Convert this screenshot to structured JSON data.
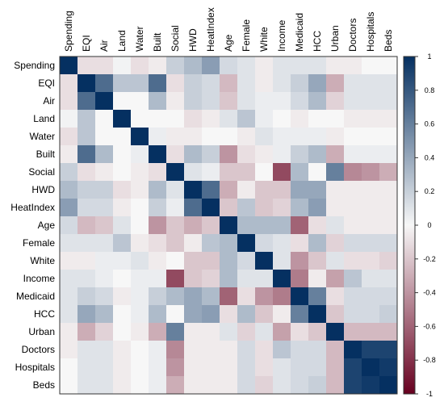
{
  "chart_data": {
    "type": "heatmap",
    "variables": [
      "Spending",
      "EQI",
      "Air",
      "Land",
      "Water",
      "Built",
      "Social",
      "HWD",
      "HeatIndex",
      "Age",
      "Female",
      "White",
      "Income",
      "Medicaid",
      "HCC",
      "Urban",
      "Doctors",
      "Hospitals",
      "Beds"
    ],
    "colorbar_ticks": [
      "1",
      "0.8",
      "0.6",
      "0.4",
      "0.2",
      "0",
      "-0.2",
      "-0.4",
      "-0.6",
      "-0.8",
      "-1"
    ],
    "color_range": [
      -1,
      1
    ],
    "colors": {
      "negative": "#67001f",
      "neutral": "#f7f7f7",
      "positive": "#053061"
    },
    "values": [
      [
        1.0,
        -0.1,
        -0.1,
        0.02,
        -0.1,
        -0.05,
        0.2,
        0.3,
        0.45,
        0.15,
        0.1,
        -0.05,
        0.1,
        0.1,
        0.1,
        -0.05,
        -0.05,
        0.0,
        0.0
      ],
      [
        -0.1,
        1.0,
        0.7,
        0.25,
        0.25,
        0.7,
        -0.1,
        0.2,
        0.15,
        -0.25,
        0.1,
        -0.05,
        0.1,
        0.2,
        0.4,
        -0.3,
        0.1,
        0.1,
        0.1
      ],
      [
        -0.1,
        0.7,
        1.0,
        0.0,
        0.0,
        0.3,
        -0.05,
        0.2,
        0.15,
        -0.2,
        0.1,
        0.05,
        0.05,
        0.15,
        0.3,
        -0.15,
        0.1,
        0.1,
        0.1
      ],
      [
        0.02,
        0.25,
        0.0,
        1.0,
        0.0,
        0.0,
        0.0,
        -0.1,
        -0.05,
        0.1,
        0.25,
        0.05,
        0.0,
        -0.05,
        0.0,
        0.0,
        -0.05,
        -0.05,
        -0.05
      ],
      [
        -0.1,
        0.25,
        0.0,
        0.0,
        1.0,
        0.05,
        -0.05,
        -0.05,
        0.0,
        0.0,
        -0.05,
        0.1,
        0.05,
        0.05,
        0.05,
        -0.05,
        0.0,
        0.0,
        0.0
      ],
      [
        -0.05,
        0.7,
        0.3,
        0.0,
        0.05,
        1.0,
        -0.1,
        0.3,
        0.2,
        -0.4,
        -0.1,
        -0.05,
        0.05,
        0.2,
        0.3,
        -0.3,
        0.05,
        0.05,
        0.05
      ],
      [
        0.2,
        -0.1,
        -0.05,
        0.0,
        -0.05,
        -0.1,
        1.0,
        0.1,
        0.05,
        -0.2,
        -0.2,
        0.0,
        -0.7,
        0.3,
        0.0,
        0.6,
        -0.45,
        -0.4,
        -0.3
      ],
      [
        0.3,
        0.2,
        0.2,
        -0.1,
        -0.05,
        0.3,
        0.1,
        1.0,
        0.7,
        -0.3,
        -0.05,
        -0.2,
        -0.2,
        0.4,
        0.4,
        -0.05,
        -0.05,
        -0.05,
        -0.05
      ],
      [
        0.45,
        0.15,
        0.15,
        -0.05,
        0.0,
        0.2,
        0.05,
        0.7,
        1.0,
        -0.2,
        0.25,
        -0.2,
        -0.15,
        0.3,
        0.45,
        -0.05,
        -0.05,
        -0.05,
        -0.05
      ],
      [
        0.15,
        -0.25,
        -0.2,
        0.1,
        0.0,
        -0.4,
        -0.2,
        -0.3,
        -0.2,
        1.0,
        0.3,
        0.3,
        0.3,
        -0.6,
        -0.1,
        0.1,
        -0.05,
        -0.05,
        -0.05
      ],
      [
        0.1,
        0.1,
        0.1,
        0.25,
        -0.05,
        -0.1,
        -0.2,
        -0.05,
        0.25,
        0.3,
        1.0,
        0.15,
        0.1,
        -0.1,
        0.3,
        -0.15,
        0.15,
        0.15,
        0.15
      ],
      [
        -0.05,
        -0.05,
        0.05,
        0.05,
        0.1,
        -0.05,
        0.0,
        -0.2,
        -0.2,
        0.3,
        0.15,
        1.0,
        0.1,
        -0.4,
        -0.2,
        0.1,
        -0.1,
        -0.1,
        -0.15
      ],
      [
        0.1,
        0.1,
        0.05,
        0.0,
        0.05,
        0.05,
        -0.7,
        -0.2,
        -0.15,
        0.3,
        0.1,
        0.1,
        1.0,
        -0.5,
        -0.05,
        -0.35,
        0.25,
        0.1,
        0.1
      ],
      [
        0.1,
        0.2,
        0.15,
        -0.05,
        0.05,
        0.2,
        0.3,
        0.4,
        0.3,
        -0.6,
        -0.1,
        -0.4,
        -0.5,
        1.0,
        0.6,
        -0.1,
        0.15,
        0.15,
        0.15
      ],
      [
        0.1,
        0.4,
        0.3,
        0.0,
        0.05,
        0.3,
        0.0,
        0.4,
        0.45,
        -0.1,
        0.3,
        -0.2,
        -0.05,
        0.6,
        1.0,
        -0.2,
        0.15,
        0.15,
        0.2
      ],
      [
        -0.05,
        -0.3,
        -0.15,
        0.0,
        -0.05,
        -0.3,
        0.6,
        -0.05,
        -0.05,
        0.1,
        -0.15,
        0.1,
        -0.35,
        -0.1,
        -0.2,
        1.0,
        -0.25,
        -0.25,
        -0.25
      ],
      [
        -0.05,
        0.1,
        0.1,
        -0.05,
        0.0,
        0.05,
        -0.45,
        -0.05,
        -0.05,
        -0.05,
        0.15,
        -0.1,
        0.25,
        0.15,
        0.15,
        -0.25,
        1.0,
        0.9,
        0.9
      ],
      [
        0.0,
        0.1,
        0.1,
        -0.05,
        0.0,
        0.05,
        -0.4,
        -0.05,
        -0.05,
        -0.05,
        0.15,
        -0.1,
        0.1,
        0.15,
        0.15,
        -0.25,
        0.9,
        1.0,
        0.95
      ],
      [
        0.0,
        0.1,
        0.1,
        -0.05,
        0.0,
        0.05,
        -0.3,
        -0.05,
        -0.05,
        -0.05,
        0.15,
        -0.15,
        0.1,
        0.15,
        0.2,
        -0.25,
        0.9,
        0.95,
        1.0
      ]
    ]
  }
}
